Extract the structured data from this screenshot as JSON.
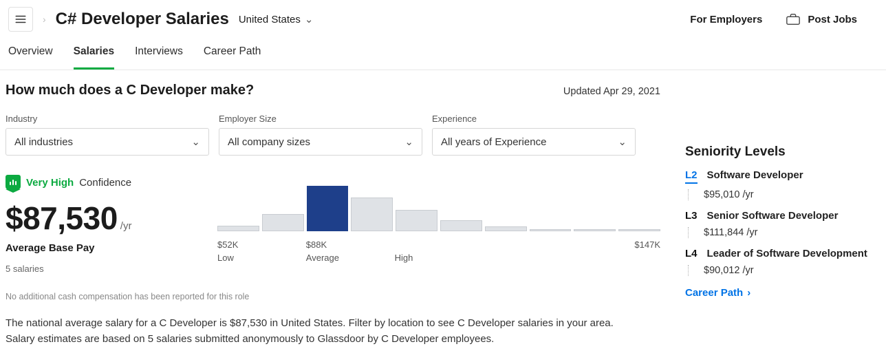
{
  "header": {
    "title": "C# Developer Salaries",
    "location": "United States",
    "links": {
      "employers": "For Employers",
      "post_jobs": "Post Jobs"
    }
  },
  "tabs": {
    "items": [
      "Overview",
      "Salaries",
      "Interviews",
      "Career Path"
    ],
    "active_index": 1
  },
  "main": {
    "heading": "How much does a C Developer make?",
    "updated": "Updated Apr 29, 2021",
    "filters": {
      "industry": {
        "label": "Industry",
        "value": "All industries"
      },
      "employer_size": {
        "label": "Employer Size",
        "value": "All company sizes"
      },
      "experience": {
        "label": "Experience",
        "value": "All years of Experience"
      }
    },
    "confidence": {
      "level": "Very High",
      "word": "Confidence"
    },
    "salary": {
      "amount": "$87,530",
      "per": "/yr",
      "label": "Average Base Pay",
      "count": "5 salaries"
    },
    "histogram": {
      "bar_heights": [
        10,
        30,
        80,
        60,
        38,
        20,
        8,
        4,
        4,
        4
      ],
      "highlight_index": 2,
      "low_value": "$52K",
      "low_label": "Low",
      "mid_value": "$88K",
      "mid_label": "Average",
      "high_value": "$147K",
      "high_label": "High",
      "bar_color": "#dfe2e6",
      "highlight_color": "#1e3f8a"
    },
    "note": "No additional cash compensation has been reported for this role",
    "description": "The national average salary for a C Developer is $87,530 in United States. Filter by location to see C Developer salaries in your area. Salary estimates are based on 5 salaries submitted anonymously to Glassdoor by C Developer employees."
  },
  "side": {
    "title": "Seniority Levels",
    "levels": [
      {
        "code": "L2",
        "name": "Software Developer",
        "salary": "$95,010 /yr",
        "active": true
      },
      {
        "code": "L3",
        "name": "Senior Software Developer",
        "salary": "$111,844 /yr",
        "active": false
      },
      {
        "code": "L4",
        "name": "Leader of Software Development",
        "salary": "$90,012 /yr",
        "active": false
      }
    ],
    "career_path": "Career Path"
  }
}
